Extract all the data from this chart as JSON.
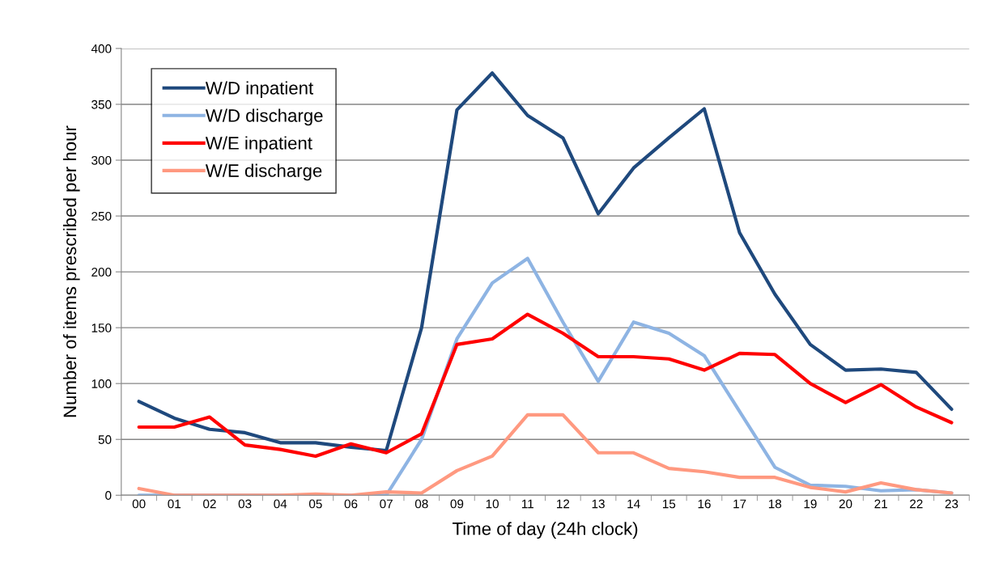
{
  "chart_data": {
    "type": "line",
    "xlabel": "Time of day (24h clock)",
    "ylabel": "Number of items prescribed per hour",
    "categories": [
      "00",
      "01",
      "02",
      "03",
      "04",
      "05",
      "06",
      "07",
      "08",
      "09",
      "10",
      "11",
      "12",
      "13",
      "14",
      "15",
      "16",
      "17",
      "18",
      "19",
      "20",
      "21",
      "22",
      "23"
    ],
    "series": [
      {
        "name": "W/D inpatient",
        "color": "#1f497d",
        "values": [
          84,
          69,
          59,
          56,
          47,
          47,
          43,
          40,
          150,
          345,
          378,
          340,
          320,
          252,
          293,
          320,
          346,
          235,
          180,
          135,
          112,
          113,
          110,
          77
        ]
      },
      {
        "name": "W/D discharge",
        "color": "#8eb4e3",
        "values": [
          0,
          0,
          0,
          0,
          0,
          0,
          0,
          0,
          50,
          140,
          190,
          212,
          155,
          102,
          155,
          145,
          125,
          75,
          25,
          9,
          8,
          4,
          5,
          2
        ]
      },
      {
        "name": "W/E inpatient",
        "color": "#ff0000",
        "values": [
          61,
          61,
          70,
          45,
          41,
          35,
          46,
          38,
          55,
          135,
          140,
          162,
          145,
          124,
          124,
          122,
          112,
          127,
          126,
          100,
          83,
          99,
          79,
          65
        ]
      },
      {
        "name": "W/E discharge",
        "color": "#ff9980",
        "values": [
          6,
          0,
          0,
          0,
          0,
          1,
          0,
          3,
          2,
          22,
          35,
          72,
          72,
          38,
          38,
          24,
          21,
          16,
          16,
          7,
          3,
          11,
          5,
          2
        ]
      }
    ],
    "ylim": [
      0,
      400
    ],
    "yticks": [
      0,
      50,
      100,
      150,
      200,
      250,
      300,
      350,
      400
    ],
    "grid": "y",
    "legend": "top left",
    "marker": "none",
    "line_style": "solid"
  }
}
